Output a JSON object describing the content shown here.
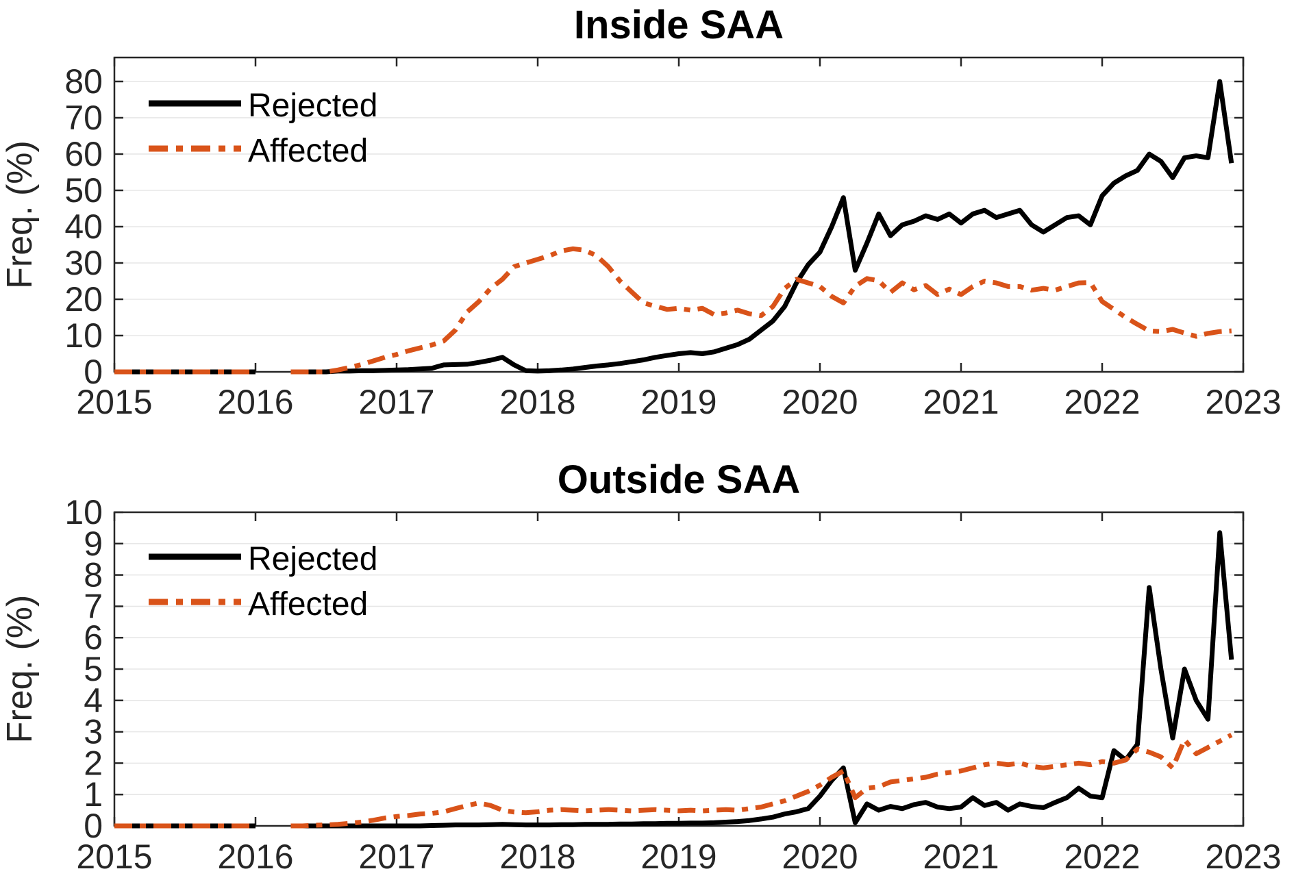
{
  "figure": {
    "background": "#ffffff",
    "axis_color": "#262626",
    "grid_color": "#e7e7e7",
    "tick_label_color": "#262626",
    "title_color": "#000000",
    "accent_orange": "#D95319",
    "accent_black": "#000000"
  },
  "chart_data": [
    {
      "type": "line",
      "title": "Inside SAA",
      "ylabel": "Freq. (%)",
      "xlim": [
        2015,
        2023
      ],
      "ylim": [
        0,
        86.6
      ],
      "xticks": [
        2015,
        2016,
        2017,
        2018,
        2019,
        2020,
        2021,
        2022,
        2023
      ],
      "yticks": [
        0,
        10,
        20,
        30,
        40,
        50,
        60,
        70,
        80
      ],
      "grid": "horizontal",
      "x_start_year": 2015,
      "x_frequency": "monthly",
      "legend": {
        "position": "top-left",
        "entries": [
          {
            "label": "Rejected",
            "style": "solid",
            "color": "#000000"
          },
          {
            "label": "Affected",
            "style": "dash-dot",
            "color": "#D95319"
          }
        ]
      },
      "series": [
        {
          "name": "Rejected",
          "color": "#000000",
          "style": "solid",
          "line_width": 7,
          "values": [
            0,
            0,
            0,
            0,
            0,
            0,
            0,
            0,
            0,
            0,
            0,
            0,
            0,
            null,
            null,
            0,
            0,
            0,
            0,
            0.2,
            0.2,
            0.3,
            0.3,
            0.4,
            0.5,
            0.6,
            0.8,
            1,
            1.9,
            2,
            2.1,
            2.6,
            3.2,
            4,
            1.9,
            0.3,
            0.2,
            0.3,
            0.5,
            0.8,
            1.2,
            1.6,
            1.9,
            2.3,
            2.8,
            3.3,
            4,
            4.5,
            5,
            5.3,
            5,
            5.5,
            6.5,
            7.5,
            9,
            11.5,
            14,
            18,
            24.5,
            29.5,
            33,
            40,
            48,
            28,
            35.5,
            43.5,
            37.5,
            40.5,
            41.5,
            43,
            42,
            43.5,
            41,
            43.5,
            44.5,
            42.5,
            43.5,
            44.5,
            40.5,
            38.5,
            40.5,
            42.5,
            43,
            40.5,
            48.5,
            52,
            54,
            55.5,
            60,
            58,
            53.5,
            59,
            59.5,
            59,
            80,
            57.5
          ]
        },
        {
          "name": "Affected",
          "color": "#D95319",
          "style": "dash-dot",
          "line_width": 7,
          "values": [
            0,
            0,
            0,
            0,
            0,
            0,
            0,
            0,
            0,
            0,
            0,
            0,
            0,
            null,
            null,
            0,
            0,
            0,
            0,
            0.5,
            1.2,
            2,
            3,
            4,
            4.8,
            5.8,
            6.6,
            7.4,
            8.5,
            11.5,
            16.5,
            19.4,
            23,
            25.5,
            29,
            30,
            31,
            32,
            33.3,
            33.9,
            33.5,
            32,
            29,
            25,
            22,
            19,
            18.1,
            17.2,
            17.5,
            17,
            17.5,
            15.8,
            16.2,
            17,
            16,
            15.5,
            18,
            23,
            25.5,
            24.5,
            23.5,
            20.8,
            19,
            23.6,
            25.7,
            25.1,
            21.9,
            24.5,
            22.6,
            23.8,
            21.3,
            22.8,
            21.3,
            23.5,
            25,
            24.5,
            23.5,
            23.5,
            22.5,
            23,
            22.5,
            23.5,
            24.5,
            24.6,
            19.4,
            17.2,
            15,
            13.1,
            11.3,
            11.1,
            11.7,
            10.7,
            9.8,
            10.6,
            11.1,
            11.3
          ]
        }
      ]
    },
    {
      "type": "line",
      "title": "Outside SAA",
      "ylabel": "Freq. (%)",
      "xlim": [
        2015,
        2023
      ],
      "ylim": [
        0,
        10
      ],
      "xticks": [
        2015,
        2016,
        2017,
        2018,
        2019,
        2020,
        2021,
        2022,
        2023
      ],
      "yticks": [
        0,
        1,
        2,
        3,
        4,
        5,
        6,
        7,
        8,
        9,
        10
      ],
      "grid": "horizontal",
      "x_start_year": 2015,
      "x_frequency": "monthly",
      "legend": {
        "position": "top-left",
        "entries": [
          {
            "label": "Rejected",
            "style": "solid",
            "color": "#000000"
          },
          {
            "label": "Affected",
            "style": "dash-dot",
            "color": "#D95319"
          }
        ]
      },
      "series": [
        {
          "name": "Rejected",
          "color": "#000000",
          "style": "solid",
          "line_width": 7,
          "values": [
            0,
            0,
            0,
            0,
            0,
            0,
            0,
            0,
            0,
            0,
            0,
            0,
            0,
            null,
            null,
            0,
            0,
            0,
            0,
            0,
            0,
            0,
            0,
            0,
            0,
            0,
            0,
            0.01,
            0.02,
            0.03,
            0.03,
            0.03,
            0.04,
            0.05,
            0.04,
            0.03,
            0.03,
            0.03,
            0.04,
            0.04,
            0.05,
            0.05,
            0.05,
            0.06,
            0.06,
            0.07,
            0.07,
            0.08,
            0.08,
            0.09,
            0.09,
            0.1,
            0.12,
            0.14,
            0.17,
            0.22,
            0.28,
            0.38,
            0.45,
            0.55,
            0.95,
            1.45,
            1.85,
            0.1,
            0.7,
            0.5,
            0.62,
            0.55,
            0.68,
            0.75,
            0.6,
            0.55,
            0.6,
            0.9,
            0.65,
            0.75,
            0.5,
            0.7,
            0.62,
            0.58,
            0.75,
            0.9,
            1.2,
            0.95,
            0.9,
            2.4,
            2.1,
            2.6,
            7.6,
            5,
            2.8,
            5,
            4,
            3.4,
            9.35,
            5.3
          ]
        },
        {
          "name": "Affected",
          "color": "#D95319",
          "style": "dash-dot",
          "line_width": 7,
          "values": [
            0,
            0,
            0,
            0,
            0,
            0,
            0,
            0,
            0,
            0,
            0,
            0,
            0,
            null,
            null,
            0,
            0,
            0.02,
            0.03,
            0.05,
            0.08,
            0.12,
            0.18,
            0.25,
            0.3,
            0.33,
            0.38,
            0.4,
            0.45,
            0.55,
            0.65,
            0.73,
            0.65,
            0.5,
            0.44,
            0.42,
            0.45,
            0.5,
            0.52,
            0.5,
            0.48,
            0.5,
            0.52,
            0.5,
            0.48,
            0.5,
            0.52,
            0.5,
            0.48,
            0.5,
            0.48,
            0.5,
            0.52,
            0.5,
            0.55,
            0.6,
            0.7,
            0.8,
            0.95,
            1.1,
            1.3,
            1.55,
            1.75,
            0.9,
            1.2,
            1.25,
            1.4,
            1.45,
            1.5,
            1.55,
            1.65,
            1.7,
            1.75,
            1.85,
            1.95,
            2,
            1.95,
            2,
            1.9,
            1.85,
            1.9,
            1.95,
            2,
            1.95,
            2.05,
            2,
            2.1,
            2.45,
            2.35,
            2.2,
            1.85,
            2.75,
            2.3,
            2.5,
            2.7,
            2.9
          ]
        }
      ]
    }
  ]
}
